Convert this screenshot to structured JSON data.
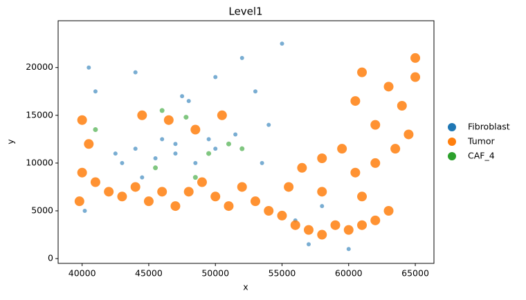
{
  "chart_data": {
    "type": "scatter",
    "title": "Level1",
    "x_label": "x",
    "y_label": "y",
    "xlim": [
      38200,
      66400
    ],
    "ylim": [
      -500,
      24900
    ],
    "xticks": [
      40000,
      45000,
      50000,
      55000,
      60000,
      65000
    ],
    "yticks": [
      0,
      5000,
      10000,
      15000,
      20000
    ],
    "legend": "right-outside",
    "series": [
      {
        "name": "Fibroblast",
        "color": "#1f77b4",
        "x": [
          42500,
          44000,
          45500,
          47000,
          48500,
          50000,
          46000,
          43000,
          49500,
          51500,
          47500,
          44000,
          50000,
          53000,
          52000,
          55000,
          41000,
          40500,
          53500,
          58000,
          56000,
          40200,
          44500,
          57000,
          60000,
          47000,
          48000,
          54000
        ],
        "y": [
          11000,
          11500,
          10500,
          11000,
          10000,
          11500,
          12500,
          10000,
          12500,
          13000,
          17000,
          19500,
          19000,
          17500,
          21000,
          22500,
          17500,
          20000,
          10000,
          5500,
          4000,
          5000,
          8500,
          1500,
          1000,
          12000,
          16500,
          14000
        ]
      },
      {
        "name": "Tumor",
        "color": "#ff7f0e",
        "x": [
          40000,
          40500,
          40000,
          39800,
          41000,
          42000,
          43000,
          44000,
          45000,
          46000,
          47000,
          48000,
          49000,
          50000,
          51000,
          52000,
          53000,
          54000,
          55000,
          56000,
          57000,
          58000,
          59000,
          60000,
          61000,
          62000,
          63000,
          55500,
          56500,
          58000,
          59500,
          60500,
          62000,
          63500,
          58000,
          61000,
          46500,
          48500,
          44500,
          50500,
          62000,
          64000,
          63000,
          65000,
          61000,
          64500,
          60500,
          65000
        ],
        "y": [
          14500,
          12000,
          9000,
          6000,
          8000,
          7000,
          6500,
          7500,
          6000,
          7000,
          5500,
          7000,
          8000,
          6500,
          5500,
          7500,
          6000,
          5000,
          4500,
          3500,
          3000,
          2500,
          3500,
          3000,
          3500,
          4000,
          5000,
          7500,
          9500,
          10500,
          11500,
          9000,
          10000,
          11500,
          7000,
          6500,
          14500,
          13500,
          15000,
          15000,
          14000,
          16000,
          18000,
          21000,
          19500,
          13000,
          16500,
          19000
        ]
      },
      {
        "name": "CAF_4",
        "color": "#2ca02c",
        "x": [
          46000,
          51000,
          52000,
          49500,
          41000,
          45500,
          48500,
          47800
        ],
        "y": [
          15500,
          12000,
          11500,
          11000,
          13500,
          9500,
          8500,
          14800
        ]
      }
    ]
  }
}
